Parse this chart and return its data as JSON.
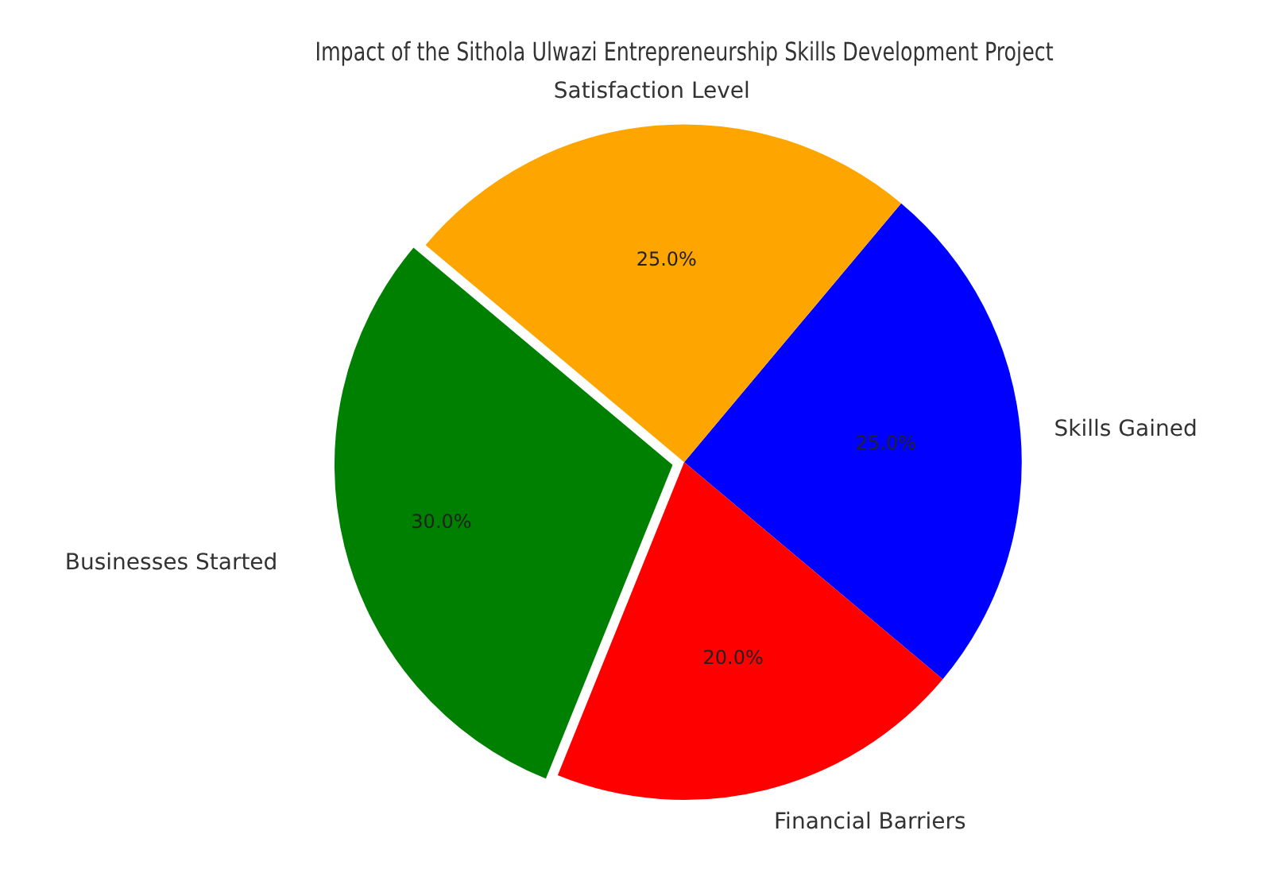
{
  "chart_data": {
    "type": "pie",
    "title": "Impact of the Sithola Ulwazi Entrepreneurship Skills Development Project",
    "categories": [
      "Skills Gained",
      "Financial Barriers",
      "Businesses Started",
      "Satisfaction Level"
    ],
    "values": [
      25.0,
      20.0,
      30.0,
      25.0
    ],
    "colors": [
      "#0000ff",
      "#ff0000",
      "#008000",
      "#ffa500"
    ],
    "value_labels": [
      "25.0%",
      "20.0%",
      "30.0%",
      "25.0%"
    ],
    "legend": false
  }
}
